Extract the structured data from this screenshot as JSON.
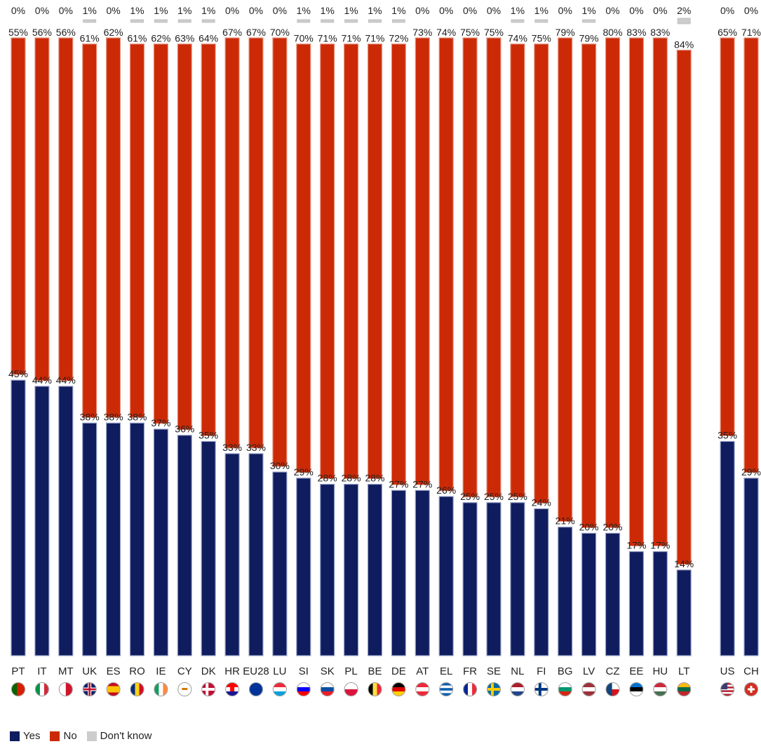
{
  "chart_data": {
    "type": "bar",
    "stacked": true,
    "orientation": "vertical",
    "categories": [
      "PT",
      "IT",
      "MT",
      "UK",
      "ES",
      "RO",
      "IE",
      "CY",
      "DK",
      "HR",
      "EU28",
      "LU",
      "SI",
      "SK",
      "PL",
      "BE",
      "DE",
      "AT",
      "EL",
      "FR",
      "SE",
      "NL",
      "FI",
      "BG",
      "LV",
      "CZ",
      "EE",
      "HU",
      "LT",
      "US",
      "CH"
    ],
    "series": [
      {
        "name": "Yes",
        "color": "#0f1c5e",
        "values": [
          45,
          44,
          44,
          38,
          38,
          38,
          37,
          36,
          35,
          33,
          33,
          30,
          29,
          28,
          28,
          28,
          27,
          27,
          26,
          25,
          25,
          25,
          24,
          21,
          20,
          20,
          17,
          17,
          14,
          35,
          29
        ]
      },
      {
        "name": "No",
        "color": "#cc2a06",
        "values": [
          55,
          56,
          56,
          61,
          62,
          61,
          62,
          63,
          64,
          67,
          67,
          70,
          70,
          71,
          71,
          71,
          72,
          73,
          74,
          75,
          75,
          74,
          75,
          79,
          79,
          80,
          83,
          83,
          84,
          65,
          71
        ]
      },
      {
        "name": "Don't know",
        "color": "#cccccc",
        "values": [
          0,
          0,
          0,
          1,
          0,
          1,
          1,
          1,
          1,
          0,
          0,
          0,
          1,
          1,
          1,
          1,
          1,
          0,
          0,
          0,
          0,
          1,
          1,
          0,
          1,
          0,
          0,
          0,
          2,
          0,
          0
        ]
      }
    ],
    "value_labels": {
      "yes": [
        "45%",
        "44%",
        "44%",
        "38%",
        "38%",
        "38%",
        "37%",
        "36%",
        "35%",
        "33%",
        "33%",
        "30%",
        "29%",
        "28%",
        "28%",
        "28%",
        "27%",
        "27%",
        "26%",
        "25%",
        "25%",
        "25%",
        "24%",
        "21%",
        "20%",
        "20%",
        "17%",
        "17%",
        "14%",
        "35%",
        "29%"
      ],
      "no": [
        "55%",
        "56%",
        "56%",
        "61%",
        "62%",
        "61%",
        "62%",
        "63%",
        "64%",
        "67%",
        "67%",
        "70%",
        "70%",
        "71%",
        "71%",
        "71%",
        "72%",
        "73%",
        "74%",
        "75%",
        "75%",
        "74%",
        "75%",
        "79%",
        "79%",
        "80%",
        "83%",
        "83%",
        "84%",
        "65%",
        "71%"
      ],
      "dont_know": [
        "0%",
        "0%",
        "0%",
        "1%",
        "0%",
        "1%",
        "1%",
        "1%",
        "1%",
        "0%",
        "0%",
        "0%",
        "1%",
        "1%",
        "1%",
        "1%",
        "1%",
        "0%",
        "0%",
        "0%",
        "0%",
        "1%",
        "1%",
        "0%",
        "1%",
        "0%",
        "0%",
        "0%",
        "2%",
        "0%",
        "0%"
      ]
    },
    "flags": [
      "flag-pt-icon",
      "flag-it-icon",
      "flag-mt-icon",
      "flag-uk-icon",
      "flag-es-icon",
      "flag-ro-icon",
      "flag-ie-icon",
      "flag-cy-icon",
      "flag-dk-icon",
      "flag-hr-icon",
      "flag-eu-icon",
      "flag-lu-icon",
      "flag-si-icon",
      "flag-sk-icon",
      "flag-pl-icon",
      "flag-be-icon",
      "flag-de-icon",
      "flag-at-icon",
      "flag-el-icon",
      "flag-fr-icon",
      "flag-se-icon",
      "flag-nl-icon",
      "flag-fi-icon",
      "flag-bg-icon",
      "flag-lv-icon",
      "flag-cz-icon",
      "flag-ee-icon",
      "flag-hu-icon",
      "flag-lt-icon",
      "flag-us-icon",
      "flag-ch-icon"
    ],
    "legend_placement": "bottom-left",
    "ylim": [
      0,
      100
    ],
    "grid": false
  },
  "legend": {
    "yes": "Yes",
    "no": "No",
    "dont_know": "Don't know"
  }
}
